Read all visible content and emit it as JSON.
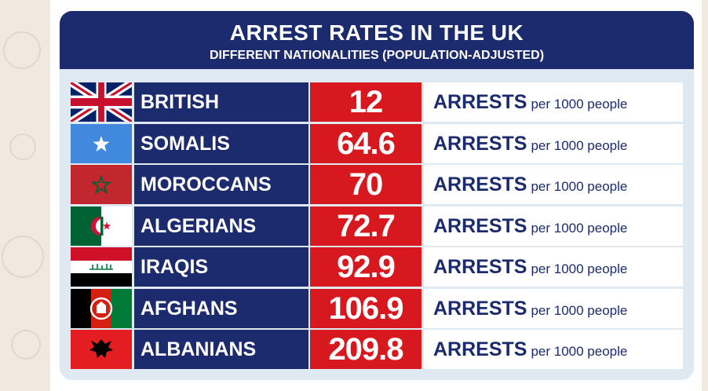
{
  "header": {
    "title": "ARREST RATES IN THE UK",
    "subtitle": "DIFFERENT NATIONALITIES (POPULATION-ADJUSTED)"
  },
  "colors": {
    "navy": "#1c2b6e",
    "red": "#d7181f",
    "background": "#dfe9f1"
  },
  "chart_data": {
    "type": "table",
    "title": "ARREST RATES IN THE UK",
    "subtitle": "DIFFERENT NATIONALITIES (POPULATION-ADJUSTED)",
    "unit_main": "ARRESTS",
    "unit_rest": "per 1000 people",
    "rows": [
      {
        "label": "BRITISH",
        "value": "12",
        "flag": "uk-flag-icon"
      },
      {
        "label": "SOMALIS",
        "value": "64.6",
        "flag": "somalia-flag-icon"
      },
      {
        "label": "MOROCCANS",
        "value": "70",
        "flag": "morocco-flag-icon"
      },
      {
        "label": "ALGERIANS",
        "value": "72.7",
        "flag": "algeria-flag-icon"
      },
      {
        "label": "IRAQIS",
        "value": "92.9",
        "flag": "iraq-flag-icon"
      },
      {
        "label": "AFGHANS",
        "value": "106.9",
        "flag": "afghanistan-flag-icon"
      },
      {
        "label": "ALBANIANS",
        "value": "209.8",
        "flag": "albania-flag-icon"
      }
    ]
  }
}
